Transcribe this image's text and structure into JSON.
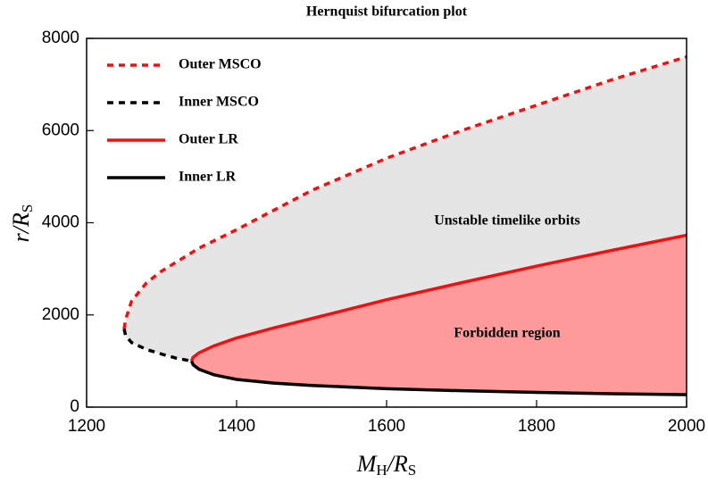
{
  "chart_data": {
    "type": "line",
    "title": "Hernquist bifurcation plot",
    "xlabel": [
      "M",
      "H",
      "/R",
      "S"
    ],
    "ylabel": [
      "r",
      "/R",
      "S"
    ],
    "xlim": [
      1200,
      2000
    ],
    "xticks": [
      1200,
      1400,
      1600,
      1800,
      2000
    ],
    "ylim": [
      0,
      8000
    ],
    "yticks": [
      0,
      2000,
      4000,
      6000,
      8000
    ],
    "legend": "upper left",
    "annotations": [
      "Unstable timelike orbits",
      "Forbidden region"
    ],
    "series": [
      {
        "name": "Outer MSCO",
        "color": "#ee1111",
        "dash": true,
        "x": [
          1250,
          1252,
          1260,
          1280,
          1300,
          1350,
          1400,
          1500,
          1600,
          1700,
          1800,
          1900,
          2000
        ],
        "values": [
          1700,
          1900,
          2300,
          2700,
          2950,
          3450,
          3850,
          4700,
          5400,
          6000,
          6550,
          7100,
          7600
        ]
      },
      {
        "name": "Inner MSCO",
        "color": "#000000",
        "dash": true,
        "x": [
          1250,
          1252,
          1260,
          1280,
          1300,
          1320,
          1340
        ],
        "values": [
          1700,
          1550,
          1400,
          1250,
          1150,
          1060,
          1000
        ]
      },
      {
        "name": "Outer LR",
        "color": "#ee1111",
        "dash": false,
        "x": [
          1340,
          1342,
          1350,
          1370,
          1400,
          1450,
          1500,
          1600,
          1700,
          1800,
          1900,
          2000
        ],
        "values": [
          1000,
          1080,
          1180,
          1330,
          1500,
          1720,
          1920,
          2330,
          2700,
          3060,
          3400,
          3730
        ]
      },
      {
        "name": "Inner LR",
        "color": "#000000",
        "dash": false,
        "x": [
          1340,
          1342,
          1350,
          1370,
          1400,
          1450,
          1500,
          1600,
          1700,
          1800,
          1900,
          2000
        ],
        "values": [
          1000,
          920,
          820,
          700,
          600,
          520,
          470,
          400,
          355,
          320,
          290,
          270
        ]
      }
    ]
  }
}
